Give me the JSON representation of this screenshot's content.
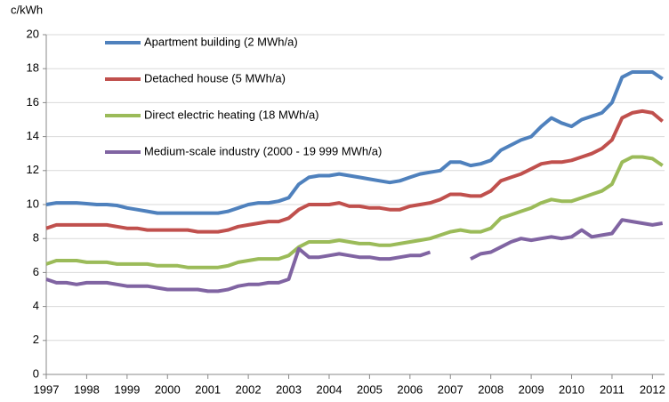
{
  "chart_data": {
    "type": "line",
    "ylabel": "c/kWh",
    "x": [
      1997,
      1997.25,
      1997.5,
      1997.75,
      1998,
      1998.25,
      1998.5,
      1998.75,
      1999,
      1999.25,
      1999.5,
      1999.75,
      2000,
      2000.25,
      2000.5,
      2000.75,
      2001,
      2001.25,
      2001.5,
      2001.75,
      2002,
      2002.25,
      2002.5,
      2002.75,
      2003,
      2003.25,
      2003.5,
      2003.75,
      2004,
      2004.25,
      2004.5,
      2004.75,
      2005,
      2005.25,
      2005.5,
      2005.75,
      2006,
      2006.25,
      2006.5,
      2006.75,
      2007,
      2007.25,
      2007.5,
      2007.75,
      2008,
      2008.25,
      2008.5,
      2008.75,
      2009,
      2009.25,
      2009.5,
      2009.75,
      2010,
      2010.25,
      2010.5,
      2010.75,
      2011,
      2011.25,
      2011.5,
      2011.75,
      2012,
      2012.25
    ],
    "series": [
      {
        "name": "Apartment building (2 MWh/a)",
        "color": "#4f81bd",
        "values": [
          10.0,
          10.1,
          10.1,
          10.1,
          10.05,
          10.0,
          10.0,
          9.95,
          9.8,
          9.7,
          9.6,
          9.5,
          9.5,
          9.5,
          9.5,
          9.5,
          9.5,
          9.5,
          9.6,
          9.8,
          10.0,
          10.1,
          10.1,
          10.2,
          10.4,
          11.2,
          11.6,
          11.7,
          11.7,
          11.8,
          11.7,
          11.6,
          11.5,
          11.4,
          11.3,
          11.4,
          11.6,
          11.8,
          11.9,
          12.0,
          12.5,
          12.5,
          12.3,
          12.4,
          12.6,
          13.2,
          13.5,
          13.8,
          14.0,
          14.6,
          15.1,
          14.8,
          14.6,
          15.0,
          15.2,
          15.4,
          16.0,
          17.5,
          17.8,
          17.8,
          17.8,
          17.4
        ]
      },
      {
        "name": "Detached house (5 MWh/a)",
        "color": "#c0504d",
        "values": [
          8.6,
          8.8,
          8.8,
          8.8,
          8.8,
          8.8,
          8.8,
          8.7,
          8.6,
          8.6,
          8.5,
          8.5,
          8.5,
          8.5,
          8.5,
          8.4,
          8.4,
          8.4,
          8.5,
          8.7,
          8.8,
          8.9,
          9.0,
          9.0,
          9.2,
          9.7,
          10.0,
          10.0,
          10.0,
          10.1,
          9.9,
          9.9,
          9.8,
          9.8,
          9.7,
          9.7,
          9.9,
          10.0,
          10.1,
          10.3,
          10.6,
          10.6,
          10.5,
          10.5,
          10.8,
          11.4,
          11.6,
          11.8,
          12.1,
          12.4,
          12.5,
          12.5,
          12.6,
          12.8,
          13.0,
          13.3,
          13.8,
          15.1,
          15.4,
          15.5,
          15.4,
          14.9
        ]
      },
      {
        "name": "Direct electric heating (18 MWh/a)",
        "color": "#9bbb59",
        "values": [
          6.5,
          6.7,
          6.7,
          6.7,
          6.6,
          6.6,
          6.6,
          6.5,
          6.5,
          6.5,
          6.5,
          6.4,
          6.4,
          6.4,
          6.3,
          6.3,
          6.3,
          6.3,
          6.4,
          6.6,
          6.7,
          6.8,
          6.8,
          6.8,
          7.0,
          7.5,
          7.8,
          7.8,
          7.8,
          7.9,
          7.8,
          7.7,
          7.7,
          7.6,
          7.6,
          7.7,
          7.8,
          7.9,
          8.0,
          8.2,
          8.4,
          8.5,
          8.4,
          8.4,
          8.6,
          9.2,
          9.4,
          9.6,
          9.8,
          10.1,
          10.3,
          10.2,
          10.2,
          10.4,
          10.6,
          10.8,
          11.2,
          12.5,
          12.8,
          12.8,
          12.7,
          12.3
        ]
      },
      {
        "name": "Medium-scale industry (2000 - 19 999 MWh/a)",
        "color": "#8064a2",
        "values": [
          5.6,
          5.4,
          5.4,
          5.3,
          5.4,
          5.4,
          5.4,
          5.3,
          5.2,
          5.2,
          5.2,
          5.1,
          5.0,
          5.0,
          5.0,
          5.0,
          4.9,
          4.9,
          5.0,
          5.2,
          5.3,
          5.3,
          5.4,
          5.4,
          5.6,
          7.4,
          6.9,
          6.9,
          7.0,
          7.1,
          7.0,
          6.9,
          6.9,
          6.8,
          6.8,
          6.9,
          7.0,
          7.0,
          7.2,
          null,
          null,
          null,
          6.8,
          7.1,
          7.2,
          7.5,
          7.8,
          8.0,
          7.9,
          8.0,
          8.1,
          8.0,
          8.1,
          8.5,
          8.1,
          8.2,
          8.3,
          9.1,
          9.0,
          8.9,
          8.8,
          8.9
        ]
      }
    ],
    "xlim": [
      1997,
      2012.3
    ],
    "xticks": [
      1997,
      1998,
      1999,
      2000,
      2001,
      2002,
      2003,
      2004,
      2005,
      2006,
      2007,
      2008,
      2009,
      2010,
      2011,
      2012
    ],
    "ylim": [
      0,
      20
    ],
    "yticks": [
      0,
      2,
      4,
      6,
      8,
      10,
      12,
      14,
      16,
      18,
      20
    ],
    "grid": true,
    "legend": "upper left"
  }
}
